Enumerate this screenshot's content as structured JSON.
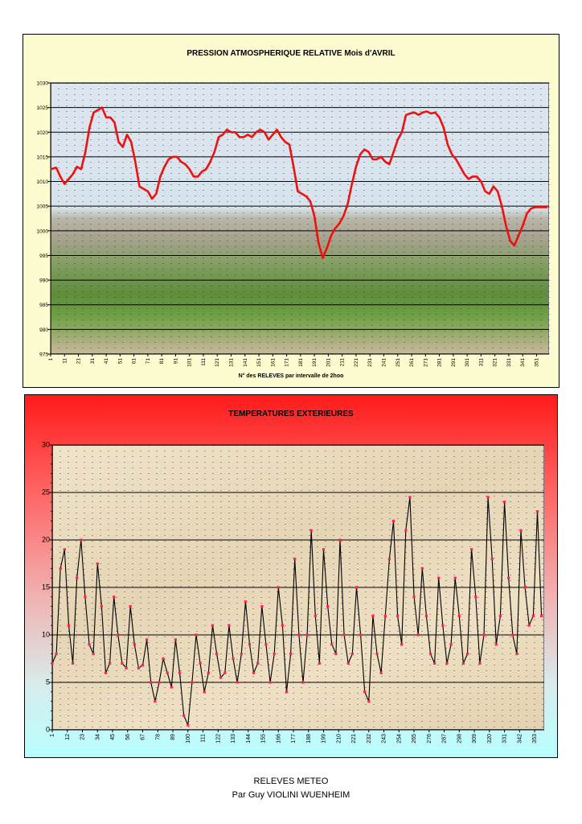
{
  "footer": {
    "line1": "RELEVES METEO",
    "line2": "Par Guy VIOLINI WUENHEIM"
  },
  "chart_data": [
    {
      "type": "line",
      "title": "PRESSION ATMOSPHERIQUE RELATIVE Mois d'AVRIL",
      "xlabel": "N° des RELEVES   par intervalle de 2hoo",
      "ylabel": "",
      "ylim": [
        975,
        1030
      ],
      "yticks": [
        975,
        980,
        985,
        990,
        995,
        1000,
        1005,
        1010,
        1015,
        1020,
        1025,
        1030
      ],
      "xlim": [
        1,
        360
      ],
      "xticks": [
        1,
        11,
        21,
        31,
        41,
        51,
        61,
        71,
        81,
        91,
        101,
        111,
        121,
        131,
        141,
        151,
        161,
        171,
        181,
        191,
        201,
        211,
        221,
        231,
        241,
        251,
        261,
        271,
        281,
        291,
        301,
        311,
        321,
        331,
        341,
        351
      ],
      "line_color": "#ee1111",
      "grid": true,
      "series": [
        {
          "x": [
            1,
            5,
            8,
            11,
            14,
            17,
            20,
            23,
            26,
            29,
            32,
            35,
            38,
            41,
            44,
            47,
            50,
            53,
            56,
            59,
            62,
            65,
            68,
            71,
            74,
            77,
            80,
            83,
            86,
            89,
            92,
            95,
            98,
            101,
            104,
            107,
            110,
            113,
            116,
            119,
            122,
            125,
            128,
            131,
            134,
            137,
            140,
            143,
            146,
            149,
            152,
            155,
            158,
            161,
            164,
            167,
            170,
            173,
            176,
            179,
            182,
            185,
            188,
            191,
            194,
            197,
            200,
            203,
            206,
            209,
            212,
            215,
            218,
            221,
            224,
            227,
            230,
            233,
            236,
            239,
            242,
            245,
            248,
            251,
            254,
            257,
            260,
            263,
            266,
            269,
            272,
            275,
            278,
            281,
            284,
            287,
            290,
            293,
            296,
            299,
            302,
            305,
            308,
            311,
            314,
            317,
            320,
            323,
            326,
            329,
            332,
            335,
            338,
            341,
            344,
            347,
            350,
            353,
            356,
            359
          ],
          "y": [
            1012.5,
            1012.8,
            1011,
            1009.5,
            1010.5,
            1011.5,
            1013,
            1012.5,
            1016,
            1021,
            1024,
            1024.5,
            1025,
            1023,
            1023,
            1022,
            1018,
            1017,
            1019.5,
            1018,
            1014,
            1009,
            1008.5,
            1008,
            1006.5,
            1007.5,
            1011,
            1013,
            1014.5,
            1015,
            1015,
            1014,
            1013.5,
            1012.5,
            1011,
            1011,
            1012,
            1012.5,
            1014,
            1016,
            1019,
            1019.5,
            1020.5,
            1020,
            1020,
            1019,
            1019,
            1019.5,
            1019,
            1020,
            1020.5,
            1020,
            1018.5,
            1019.5,
            1020.5,
            1019,
            1018,
            1017.5,
            1013,
            1008,
            1007.5,
            1007,
            1006,
            1003,
            997.5,
            994.5,
            996.5,
            999,
            1000.5,
            1001.5,
            1003,
            1005.5,
            1009.5,
            1013,
            1015.5,
            1016.5,
            1016,
            1014.5,
            1014.5,
            1015,
            1014,
            1013.5,
            1016,
            1018.5,
            1020,
            1023.5,
            1023.8,
            1024,
            1023.5,
            1024,
            1024.2,
            1023.8,
            1024,
            1023,
            1021,
            1017.5,
            1015.5,
            1014.5,
            1013,
            1011.5,
            1010.5,
            1011,
            1011,
            1010,
            1008,
            1007.5,
            1009,
            1008,
            1005,
            1001,
            998,
            997,
            999,
            1001,
            1003.5,
            1004.5,
            1004.8,
            1004.8,
            1004.8,
            1004.8
          ]
        }
      ]
    },
    {
      "type": "line",
      "title": "TEMPERATURES EXTERIEURES",
      "xlabel": "",
      "ylabel": "",
      "ylim": [
        0,
        30
      ],
      "yticks": [
        0,
        5,
        10,
        15,
        20,
        25,
        30
      ],
      "xlim": [
        1,
        360
      ],
      "xticks": [
        1,
        12,
        23,
        34,
        45,
        56,
        67,
        78,
        89,
        100,
        111,
        122,
        133,
        144,
        155,
        166,
        177,
        188,
        199,
        210,
        221,
        232,
        243,
        254,
        265,
        276,
        287,
        298,
        309,
        320,
        331,
        342,
        353
      ],
      "line_color": "#000000",
      "marker_color": "#ff2255",
      "grid": true,
      "series": [
        {
          "x": [
            1,
            4,
            7,
            10,
            13,
            16,
            19,
            22,
            25,
            28,
            31,
            34,
            37,
            40,
            43,
            46,
            49,
            52,
            55,
            58,
            61,
            64,
            67,
            70,
            73,
            76,
            79,
            82,
            85,
            88,
            91,
            94,
            97,
            100,
            103,
            106,
            109,
            112,
            115,
            118,
            121,
            124,
            127,
            130,
            133,
            136,
            139,
            142,
            145,
            148,
            151,
            154,
            157,
            160,
            163,
            166,
            169,
            172,
            175,
            178,
            181,
            184,
            187,
            190,
            193,
            196,
            199,
            202,
            205,
            208,
            211,
            214,
            217,
            220,
            223,
            226,
            229,
            232,
            235,
            238,
            241,
            244,
            247,
            250,
            253,
            256,
            259,
            262,
            265,
            268,
            271,
            274,
            277,
            280,
            283,
            286,
            289,
            292,
            295,
            298,
            301,
            304,
            307,
            310,
            313,
            316,
            319,
            322,
            325,
            328,
            331,
            334,
            337,
            340,
            343,
            346,
            349,
            352,
            355,
            358
          ],
          "y": [
            7,
            8,
            17,
            19,
            11,
            7,
            16,
            20,
            14,
            9,
            8,
            17.5,
            13,
            6,
            7,
            14,
            10,
            7,
            6.5,
            13,
            9,
            6.5,
            6.8,
            9.5,
            5,
            3,
            5,
            7.5,
            6,
            4.5,
            9.5,
            6,
            1.5,
            0.5,
            5,
            10,
            7,
            4,
            6,
            11,
            8,
            5.5,
            6,
            11,
            7.5,
            5,
            8,
            13.5,
            9,
            6,
            7,
            13,
            9,
            5,
            8,
            15,
            11,
            4,
            8,
            18,
            10,
            5,
            10,
            21,
            12,
            7,
            19,
            13,
            9,
            8,
            20,
            10,
            7,
            8,
            15,
            10,
            4,
            3,
            12,
            8,
            6,
            12,
            18,
            22,
            12,
            9,
            21,
            24.5,
            14,
            10,
            17,
            12,
            8,
            7,
            16,
            11,
            7,
            9,
            16,
            12,
            7,
            8,
            19,
            14,
            7,
            10,
            24.5,
            18,
            9,
            12,
            24,
            16,
            10,
            8,
            21,
            15,
            11,
            12,
            23,
            12
          ]
        }
      ]
    }
  ]
}
